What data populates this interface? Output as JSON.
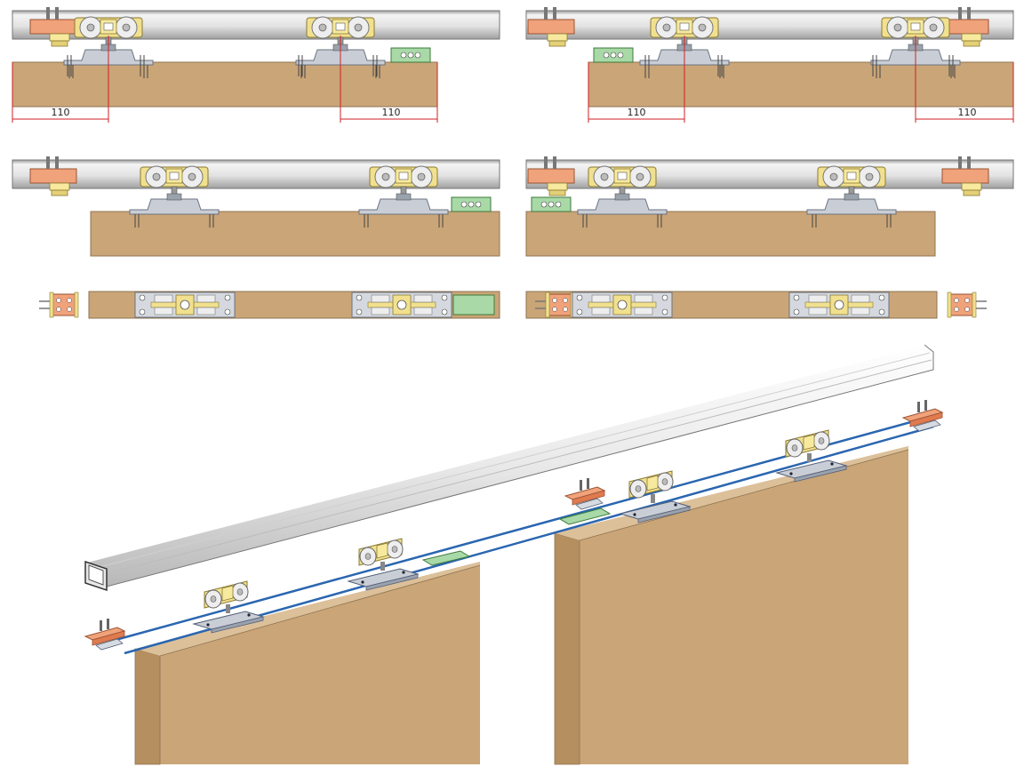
{
  "panels": {
    "top_left": {
      "dim_left": "110",
      "dim_right": "110"
    },
    "top_right": {
      "dim_left": "110",
      "dim_right": "110"
    }
  },
  "colors": {
    "door": "#caa577",
    "door_edge": "#8f7450",
    "rail_light": "#f1f1f1",
    "rail_dark": "#8c8c8c",
    "stopper_orange": "#f0a27a",
    "roller_yellow": "#f1e08e",
    "guide_green": "#a8d9a7",
    "plate_grey": "#c9ced6",
    "dimension_red": "#d21f26",
    "outline_blue": "#2a66b0"
  },
  "icons": [
    "track-rail",
    "roller-carriage",
    "end-stopper",
    "floor-guide",
    "mounting-plate",
    "wooden-door"
  ]
}
